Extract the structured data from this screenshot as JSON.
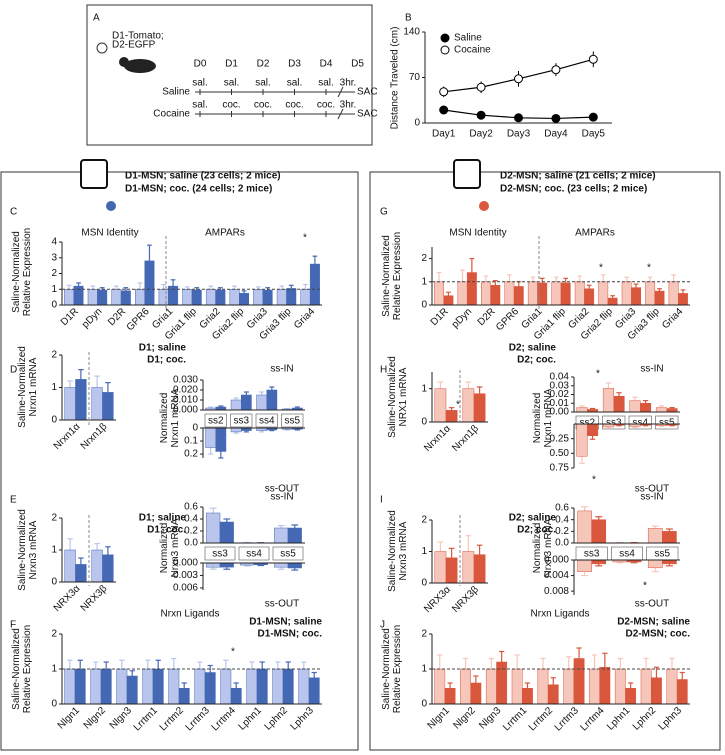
{
  "schedule": {
    "panel": "A",
    "genotype": [
      "D1-Tomato;",
      "D2-EGFP"
    ],
    "days": [
      "D0",
      "D1",
      "D2",
      "D3",
      "D4",
      "D5"
    ],
    "rows": [
      {
        "label": "Saline",
        "events": [
          "sal.",
          "sal.",
          "sal.",
          "sal.",
          "sal."
        ],
        "wait": "3hr.",
        "end": "SAC"
      },
      {
        "label": "Cocaine",
        "events": [
          "sal.",
          "coc.",
          "coc.",
          "coc.",
          "coc."
        ],
        "wait": "3hr.",
        "end": "SAC"
      }
    ]
  },
  "groups": [
    {
      "saline": "D1-MSN; saline (23 cells; 2 mice)",
      "cocaine": "D1-MSN; coc. (24 cells; 2 mice)"
    },
    {
      "saline": "D2-MSN; saline (21 cells; 2 mice)",
      "cocaine": "D2-MSN; coc. (23 cells; 2 mice)"
    }
  ],
  "chart_data": [
    {
      "type": "line",
      "panel": "B",
      "categories": [
        "Day1",
        "Day2",
        "Day3",
        "Day4",
        "Day5"
      ],
      "ylabel": [
        "Distance Traveled (cm)"
      ],
      "ylim": [
        0,
        140
      ],
      "yticks": [
        0,
        70,
        140
      ],
      "legend": "upper left",
      "series": [
        {
          "name": "Saline",
          "color": "#000000",
          "marker": "filled",
          "values": [
            20,
            12,
            8,
            7,
            9
          ],
          "errors": [
            3,
            2,
            2,
            2,
            2
          ]
        },
        {
          "name": "Cocaine",
          "color": "#000000",
          "marker": "open",
          "values": [
            48,
            55,
            68,
            82,
            98
          ],
          "errors": [
            8,
            9,
            12,
            10,
            12
          ]
        }
      ]
    },
    {
      "type": "bar",
      "panel": "C",
      "categories": [
        "D1R",
        "pDyn",
        "D2R",
        "GPR6",
        "Gria1",
        "Gria1 flip",
        "Gria2",
        "Gria2 flip",
        "Gria3",
        "Gria3 flip",
        "Gria4"
      ],
      "ylabel": [
        "Saline-Normalized",
        "Relative Expression"
      ],
      "ylim": [
        0,
        4
      ],
      "yticks": [
        0,
        1,
        2,
        3,
        4
      ],
      "hline": 1,
      "annotations": [
        "MSN Identity",
        "AMPARs",
        "*"
      ],
      "series": [
        {
          "color": "#b9c5ec",
          "values": [
            1,
            1,
            1,
            1,
            1,
            1,
            1,
            1,
            1,
            1,
            1
          ],
          "errors": [
            0.25,
            0.2,
            0.2,
            0.4,
            0.3,
            0.15,
            0.2,
            0.2,
            0.15,
            0.2,
            0.3
          ]
        },
        {
          "color": "#4468b4",
          "values": [
            1.2,
            0.95,
            0.9,
            2.8,
            1.2,
            0.95,
            0.95,
            0.75,
            0.95,
            1.05,
            2.6
          ],
          "errors": [
            0.2,
            0.15,
            0.2,
            1.0,
            0.4,
            0.15,
            0.15,
            0.15,
            0.15,
            0.2,
            0.5
          ]
        }
      ]
    },
    {
      "type": "bar",
      "panel": "D",
      "categories": [
        "Nrxn1α",
        "Nrxn1β"
      ],
      "ylabel": [
        "Saline-Normalized",
        "Nrxn1 mRNA"
      ],
      "ylim": [
        0,
        2
      ],
      "yticks": [
        0,
        1,
        2
      ],
      "legend": "upper right",
      "series": [
        {
          "name": "D1; saline",
          "color": "#b9c5ec",
          "values": [
            1,
            1
          ],
          "errors": [
            0.2,
            0.35
          ]
        },
        {
          "name": "D1; coc.",
          "color": "#4468b4",
          "values": [
            1.25,
            0.85
          ],
          "errors": [
            0.3,
            0.3
          ]
        }
      ]
    },
    {
      "type": "bar",
      "categories": [
        "ss2",
        "ss3",
        "ss4",
        "ss5"
      ],
      "ylabel": [
        "Normalized",
        "Nrxn1 mRNA"
      ],
      "ylim": [
        0,
        0.03
      ],
      "yticks": [
        {
          "value": 0,
          "label": "0.000"
        },
        {
          "value": 0.01,
          "label": "0.010"
        },
        {
          "value": 0.02,
          "label": "0.020"
        },
        {
          "value": 0.03,
          "label": "0.030"
        }
      ],
      "annotations": [
        "ss-IN"
      ],
      "series": [
        {
          "color": "#b9c5ec",
          "values": [
            0.002,
            0.01,
            0.015,
            0.001
          ],
          "errors": [
            0.001,
            0.002,
            0.003,
            0.0005
          ]
        },
        {
          "color": "#4468b4",
          "values": [
            0.003,
            0.015,
            0.02,
            0.002
          ],
          "errors": [
            0.001,
            0.003,
            0.003,
            0.001
          ]
        }
      ]
    },
    {
      "type": "bar",
      "categories": [
        null,
        null,
        null,
        null
      ],
      "ylim": [
        0.23,
        0
      ],
      "yticks": [
        0,
        0.1,
        0.2
      ],
      "annotations": [
        "ss-OUT"
      ],
      "series": [
        {
          "color": "#b9c5ec",
          "values": [
            0.15,
            0.03,
            0.02,
            0.01
          ],
          "errors": [
            0.05,
            0.01,
            0.01,
            0.005
          ]
        },
        {
          "color": "#4468b4",
          "values": [
            0.18,
            0.02,
            0.015,
            0.01
          ],
          "errors": [
            0.05,
            0.01,
            0.005,
            0.005
          ]
        }
      ]
    },
    {
      "type": "bar",
      "panel": "E",
      "categories": [
        "NRX3α",
        "NRX3β"
      ],
      "ylabel": [
        "Saline-Normalized",
        "Nrxn3 mRNA"
      ],
      "ylim": [
        0,
        2
      ],
      "yticks": [
        0,
        1,
        2
      ],
      "legend": "upper right",
      "series": [
        {
          "name": "D1; saline",
          "color": "#b9c5ec",
          "values": [
            1,
            1
          ],
          "errors": [
            0.35,
            0.2
          ]
        },
        {
          "name": "D1; coc.",
          "color": "#4468b4",
          "values": [
            0.55,
            0.85
          ],
          "errors": [
            0.2,
            0.25
          ]
        }
      ]
    },
    {
      "type": "bar",
      "categories": [
        "ss3",
        "ss4",
        "ss5"
      ],
      "ylabel": [
        "Normalized",
        "Nrxn3 mRNA"
      ],
      "ylim": [
        0,
        0.6
      ],
      "yticks": [
        {
          "value": 0,
          "label": "0.0"
        },
        0.2,
        0.4,
        0.6
      ],
      "annotations": [
        "ss-IN"
      ],
      "series": [
        {
          "color": "#b9c5ec",
          "values": [
            0.5,
            0.005,
            0.25
          ],
          "errors": [
            0.08,
            0.002,
            0.04
          ]
        },
        {
          "color": "#4468b4",
          "values": [
            0.35,
            0.003,
            0.25
          ],
          "errors": [
            0.05,
            0.002,
            0.05
          ]
        }
      ]
    },
    {
      "type": "bar",
      "categories": [
        null,
        null,
        null
      ],
      "ylim": [
        0.0065,
        0
      ],
      "yticks": [
        {
          "value": 0,
          "label": "0.000"
        },
        {
          "value": 0.003,
          "label": "0.003"
        },
        {
          "value": 0.006,
          "label": "0.006"
        }
      ],
      "annotations": [
        "ss-OUT"
      ],
      "series": [
        {
          "color": "#b9c5ec",
          "values": [
            0.001,
            0.0005,
            0.001
          ],
          "errors": [
            0.0005,
            0.0002,
            0.0005
          ]
        },
        {
          "color": "#4468b4",
          "values": [
            0.001,
            0.0004,
            0.0012
          ],
          "errors": [
            0.0005,
            0.0002,
            0.0005
          ]
        }
      ]
    },
    {
      "type": "bar",
      "panel": "F",
      "title": "Nrxn Ligands",
      "categories": [
        "Nlgn1",
        "Nlgn2",
        "Nlgn3",
        "Lrrtm1",
        "Lrrtm2",
        "Lrrtm3",
        "Lrrtm4",
        "Lphn1",
        "Lphn2",
        "Lphn3"
      ],
      "ylabel": [
        "Saline-Normalized",
        "Relative Expression"
      ],
      "ylim": [
        0,
        2
      ],
      "yticks": [
        0,
        1,
        2
      ],
      "hline": 1,
      "legend": "upper right",
      "annotations": [
        "*"
      ],
      "series": [
        {
          "name": "D1-MSN; saline",
          "color": "#b9c5ec",
          "values": [
            1,
            1,
            1,
            1,
            1,
            1,
            1,
            1,
            1,
            1
          ],
          "errors": [
            0.25,
            0.2,
            0.25,
            0.25,
            0.3,
            0.2,
            0.25,
            0.2,
            0.2,
            0.2
          ]
        },
        {
          "name": "D1-MSN; coc.",
          "color": "#4468b4",
          "values": [
            1.0,
            1.0,
            0.8,
            1.0,
            0.45,
            0.9,
            0.45,
            1.0,
            1.0,
            0.75
          ],
          "errors": [
            0.25,
            0.2,
            0.15,
            0.25,
            0.15,
            0.2,
            0.15,
            0.2,
            0.2,
            0.15
          ]
        }
      ]
    },
    {
      "type": "bar",
      "panel": "G",
      "categories": [
        "D1R",
        "pDyn",
        "D2R",
        "GPR6",
        "Gria1",
        "Gria1 flip",
        "Gria2",
        "Gria2 flip",
        "Gria3",
        "Gria3 flip",
        "Gria4"
      ],
      "ylabel": [
        "Saline-Normalized",
        "Relative Expression"
      ],
      "ylim": [
        0,
        2.5
      ],
      "yticks": [
        0,
        1,
        2
      ],
      "hline": 1,
      "annotations": [
        "MSN Identity",
        "AMPARs",
        "*",
        "*"
      ],
      "series": [
        {
          "color": "#f7c6ba",
          "values": [
            1,
            1,
            1,
            1,
            1,
            1,
            1,
            1,
            1,
            1,
            1
          ],
          "errors": [
            0.4,
            0.5,
            0.25,
            0.3,
            0.2,
            0.2,
            0.25,
            0.3,
            0.2,
            0.2,
            0.3
          ]
        },
        {
          "color": "#d9573d",
          "values": [
            0.4,
            1.4,
            0.85,
            0.8,
            0.95,
            0.95,
            0.7,
            0.3,
            0.75,
            0.6,
            0.5
          ],
          "errors": [
            0.15,
            0.6,
            0.2,
            0.2,
            0.2,
            0.2,
            0.15,
            0.1,
            0.15,
            0.1,
            0.15
          ]
        }
      ]
    },
    {
      "type": "bar",
      "panel": "H",
      "categories": [
        "Nrxn1α",
        "Nrxn1β"
      ],
      "ylabel": [
        "Saline-Normalized",
        "NRX1 mRNA"
      ],
      "ylim": [
        0,
        1.5
      ],
      "yticks": [
        0,
        1
      ],
      "legend": "upper right",
      "annotations": [
        "*"
      ],
      "series": [
        {
          "name": "D2; saline",
          "color": "#f7c6ba",
          "values": [
            1,
            1
          ],
          "errors": [
            0.2,
            0.2
          ]
        },
        {
          "name": "D2; coc.",
          "color": "#d9573d",
          "values": [
            0.35,
            0.85
          ],
          "errors": [
            0.08,
            0.2
          ]
        }
      ]
    },
    {
      "type": "bar",
      "categories": [
        "ss2",
        "ss3",
        "ss4",
        "ss5"
      ],
      "ylabel": [
        "Normalized",
        "Nrxn1 mRNA"
      ],
      "ylim": [
        0,
        0.04
      ],
      "yticks": [
        {
          "value": 0,
          "label": "0.00"
        },
        {
          "value": 0.01,
          "label": "0.01"
        },
        {
          "value": 0.02,
          "label": "0.02"
        },
        {
          "value": 0.03,
          "label": "0.03"
        },
        {
          "value": 0.04,
          "label": "0.04"
        }
      ],
      "annotations": [
        "ss-IN",
        "*"
      ],
      "series": [
        {
          "color": "#f7c6ba",
          "values": [
            0.005,
            0.027,
            0.013,
            0.005
          ],
          "errors": [
            0.002,
            0.006,
            0.004,
            0.002
          ]
        },
        {
          "color": "#d9573d",
          "values": [
            0.003,
            0.018,
            0.01,
            0.004
          ],
          "errors": [
            0.001,
            0.004,
            0.003,
            0.001
          ]
        }
      ]
    },
    {
      "type": "bar",
      "categories": [
        null,
        null,
        null,
        null
      ],
      "ylim": [
        0.75,
        0
      ],
      "yticks": [
        {
          "value": 0.25,
          "label": "0.25"
        },
        {
          "value": 0.5,
          "label": "0.50"
        },
        {
          "value": 0.75,
          "label": "0.75"
        }
      ],
      "annotations": [
        "ss-OUT",
        "*"
      ],
      "series": [
        {
          "color": "#f7c6ba",
          "values": [
            0.55,
            0.05,
            0.04,
            0.03
          ],
          "errors": [
            0.12,
            0.02,
            0.02,
            0.01
          ]
        },
        {
          "color": "#d9573d",
          "values": [
            0.2,
            0.02,
            0.02,
            0.02
          ],
          "errors": [
            0.06,
            0.01,
            0.01,
            0.01
          ]
        }
      ]
    },
    {
      "type": "bar",
      "panel": "I",
      "categories": [
        "NRX3α",
        "NRX3β"
      ],
      "ylabel": [
        "Saline-Normalized",
        "Nrxn3 mRNA"
      ],
      "ylim": [
        0,
        2
      ],
      "yticks": [
        0,
        1,
        2
      ],
      "legend": "upper right",
      "series": [
        {
          "name": "D2; saline",
          "color": "#f7c6ba",
          "values": [
            1,
            1
          ],
          "errors": [
            0.3,
            0.5
          ]
        },
        {
          "name": "D2; coc.",
          "color": "#d9573d",
          "values": [
            0.8,
            0.9
          ],
          "errors": [
            0.3,
            0.3
          ]
        }
      ]
    },
    {
      "type": "bar",
      "categories": [
        "ss3",
        "ss4",
        "ss5"
      ],
      "ylabel": [
        "Normalized",
        "Nrxn3 mRNA"
      ],
      "ylim": [
        0,
        0.6
      ],
      "yticks": [
        {
          "value": 0,
          "label": "0.0"
        },
        0.2,
        0.4,
        0.6
      ],
      "annotations": [
        "ss-IN"
      ],
      "series": [
        {
          "color": "#f7c6ba",
          "values": [
            0.55,
            0.005,
            0.25
          ],
          "errors": [
            0.07,
            0.002,
            0.04
          ]
        },
        {
          "color": "#d9573d",
          "values": [
            0.4,
            0.005,
            0.2
          ],
          "errors": [
            0.05,
            0.002,
            0.04
          ]
        }
      ]
    },
    {
      "type": "bar",
      "categories": [
        null,
        null,
        null
      ],
      "ylim": [
        0.009,
        0
      ],
      "yticks": [
        {
          "value": 0,
          "label": "0.000"
        },
        {
          "value": 0.004,
          "label": "0.004"
        },
        {
          "value": 0.008,
          "label": "0.008"
        }
      ],
      "annotations": [
        "ss-OUT",
        "*"
      ],
      "series": [
        {
          "color": "#f7c6ba",
          "values": [
            0.003,
            0.0005,
            0.002
          ],
          "errors": [
            0.001,
            0.0002,
            0.001
          ]
        },
        {
          "color": "#d9573d",
          "values": [
            0.001,
            0.0005,
            0.001
          ],
          "errors": [
            0.0005,
            0.0002,
            0.0005
          ]
        }
      ]
    },
    {
      "type": "bar",
      "panel": "J",
      "title": "Nrxn Ligands",
      "categories": [
        "Nlgn1",
        "Nlgn2",
        "Nlgn3",
        "Lrrtm1",
        "Lrrtm2",
        "Lrrtm3",
        "Lrrtm4",
        "Lphn1",
        "Lphn2",
        "Lphn3"
      ],
      "ylabel": [
        "Saline-Normalized",
        "Relative Expression"
      ],
      "ylim": [
        0,
        2
      ],
      "yticks": [
        0,
        1,
        2
      ],
      "hline": 1,
      "legend": "upper right",
      "series": [
        {
          "name": "D2-MSN; saline",
          "color": "#f7c6ba",
          "values": [
            1,
            1,
            1,
            1,
            1,
            1,
            1,
            1,
            1,
            1
          ],
          "errors": [
            0.4,
            0.3,
            0.3,
            0.4,
            0.3,
            0.35,
            0.4,
            0.3,
            0.3,
            0.3
          ]
        },
        {
          "name": "D2-MSN; coc.",
          "color": "#d9573d",
          "values": [
            0.45,
            0.6,
            1.2,
            0.45,
            0.55,
            1.3,
            1.05,
            0.45,
            0.75,
            0.7
          ],
          "errors": [
            0.15,
            0.2,
            0.3,
            0.15,
            0.2,
            0.3,
            0.4,
            0.15,
            0.3,
            0.2
          ]
        }
      ]
    }
  ]
}
